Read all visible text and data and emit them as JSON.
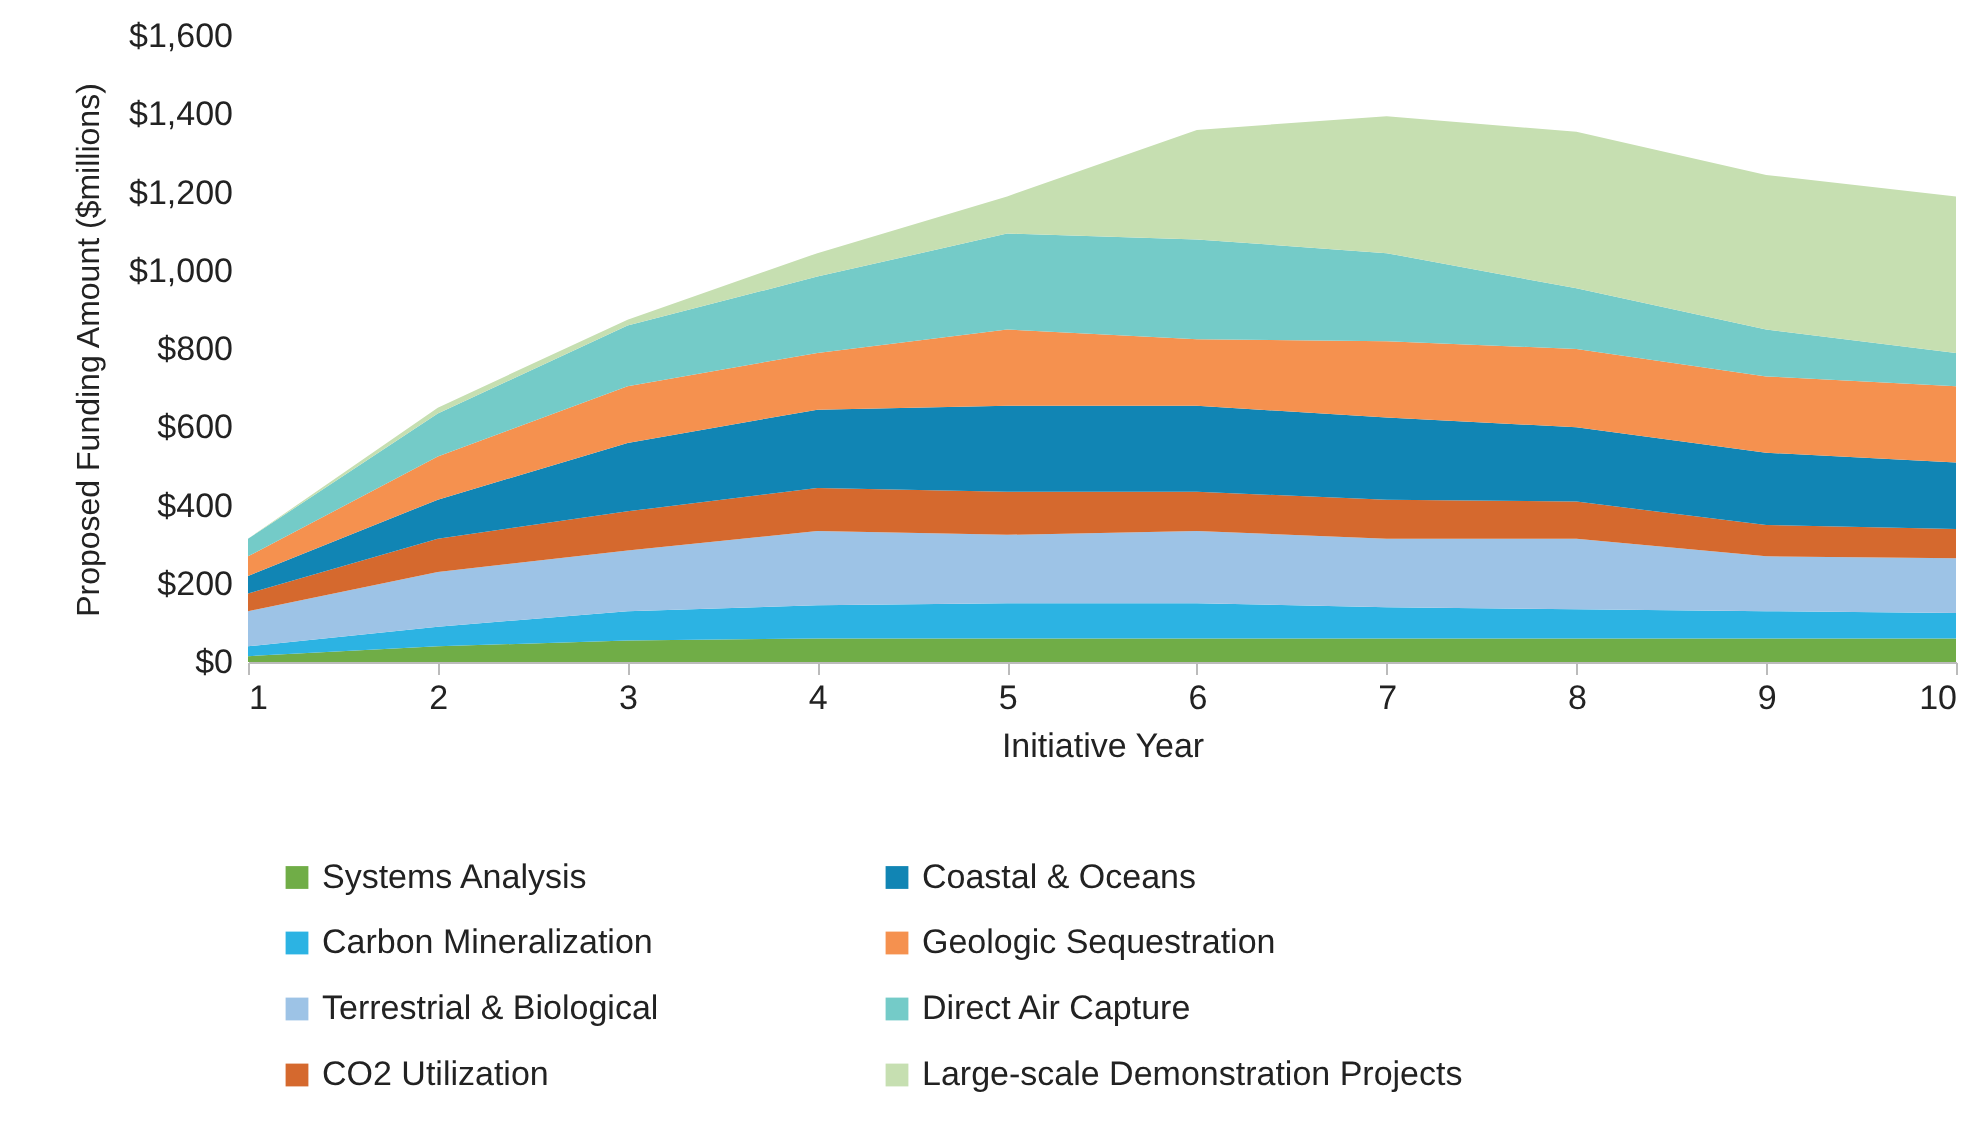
{
  "chart_data": {
    "type": "area",
    "stacked": true,
    "xlabel": "Initiative Year",
    "ylabel": "Proposed Funding Amount ($millions)",
    "x": [
      1,
      2,
      3,
      4,
      5,
      6,
      7,
      8,
      9,
      10
    ],
    "xlim": [
      1,
      10
    ],
    "xticks": [
      1,
      2,
      3,
      4,
      5,
      6,
      7,
      8,
      9,
      10
    ],
    "ylim": [
      0,
      1600
    ],
    "yticks": [
      {
        "value": 0,
        "label": "$0"
      },
      {
        "value": 200,
        "label": "$200"
      },
      {
        "value": 400,
        "label": "$400"
      },
      {
        "value": 600,
        "label": "$600"
      },
      {
        "value": 800,
        "label": "$800"
      },
      {
        "value": 1000,
        "label": "$1,000"
      },
      {
        "value": 1200,
        "label": "$1,200"
      },
      {
        "value": 1400,
        "label": "$1,400"
      },
      {
        "value": 1600,
        "label": "$1,600"
      }
    ],
    "grid": false,
    "legend": "bottom",
    "series": [
      {
        "name": "Systems Analysis",
        "color": "#70ad47",
        "values": [
          15,
          40,
          55,
          60,
          60,
          60,
          60,
          60,
          60,
          60
        ]
      },
      {
        "name": "Carbon Mineralization",
        "color": "#2cb3e3",
        "values": [
          25,
          50,
          75,
          85,
          90,
          90,
          80,
          75,
          70,
          65
        ]
      },
      {
        "name": "Terrestrial & Biological",
        "color": "#9dc3e6",
        "values": [
          90,
          140,
          155,
          190,
          175,
          185,
          175,
          180,
          140,
          140
        ]
      },
      {
        "name": "CO2 Utilization",
        "color": "#d5692e",
        "values": [
          45,
          85,
          100,
          110,
          110,
          100,
          100,
          95,
          80,
          75
        ]
      },
      {
        "name": "Coastal & Oceans",
        "color": "#1185b4",
        "values": [
          45,
          100,
          175,
          200,
          220,
          220,
          210,
          190,
          185,
          170
        ]
      },
      {
        "name": "Geologic Sequestration",
        "color": "#f5914f",
        "values": [
          50,
          110,
          145,
          145,
          195,
          170,
          195,
          200,
          195,
          195
        ]
      },
      {
        "name": "Direct Air Capture",
        "color": "#74cbc8",
        "values": [
          45,
          110,
          155,
          195,
          245,
          255,
          225,
          155,
          120,
          85
        ]
      },
      {
        "name": "Large-scale Demonstration Projects",
        "color": "#c6dfb1",
        "values": [
          0,
          15,
          15,
          60,
          95,
          280,
          350,
          400,
          395,
          400
        ]
      }
    ]
  }
}
